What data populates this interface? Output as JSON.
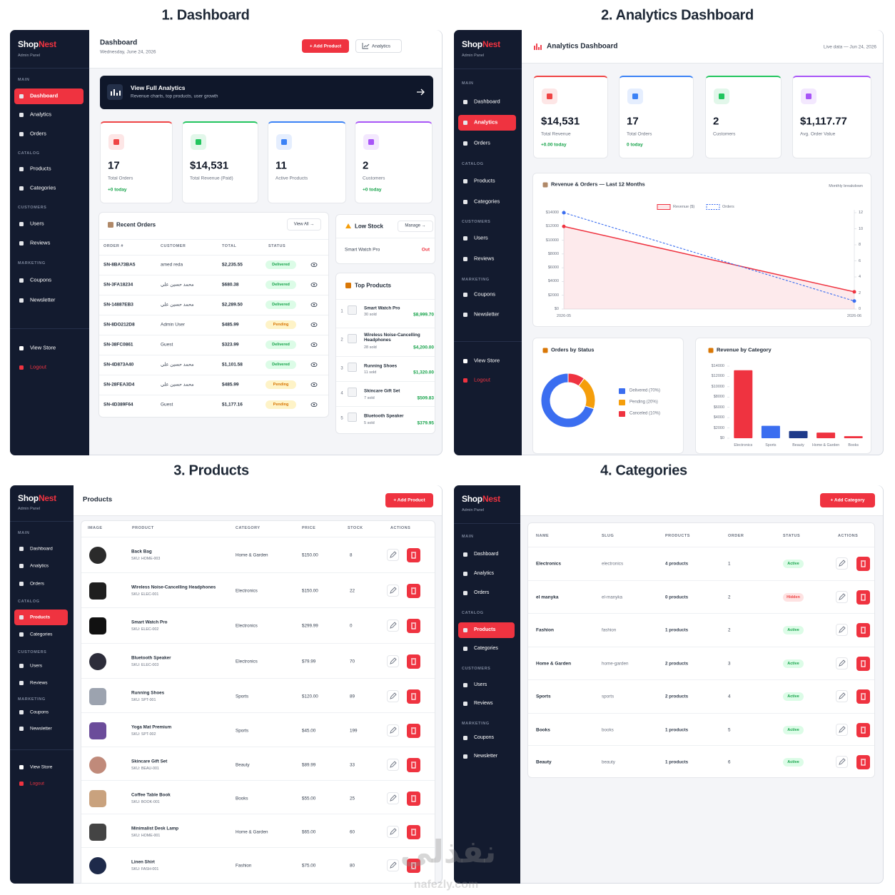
{
  "watermark": {
    "text": "نفذلي",
    "url": "nafezly.com"
  },
  "sidebar": {
    "brand_a": "Shop",
    "brand_b": "Nest",
    "subtitle": "Admin Panel",
    "sections": [
      {
        "label": "MAIN",
        "items": [
          "Dashboard",
          "Analytics",
          "Orders"
        ]
      },
      {
        "label": "CATALOG",
        "items": [
          "Products",
          "Categories"
        ]
      },
      {
        "label": "CUSTOMERS",
        "items": [
          "Users",
          "Reviews"
        ]
      },
      {
        "label": "MARKETING",
        "items": [
          "Coupons",
          "Newsletter"
        ]
      }
    ],
    "footer": [
      "View Store",
      "Logout"
    ]
  },
  "dashboard": {
    "caption": "1. Dashboard",
    "active_item": "Dashboard",
    "title": "Dashboard",
    "date": "Wednesday, June 24, 2026",
    "primary_button": "+ Add Product",
    "secondary_button": "Analytics",
    "banner": {
      "title": "View Full Analytics",
      "subtitle": "Revenue charts, top products, user growth"
    },
    "stats": [
      {
        "value": 17,
        "label": "Total Orders",
        "note": "+0 today",
        "accent": "#ef4444"
      },
      {
        "value": "$14,531",
        "label": "Total Revenue (Paid)",
        "accent": "#22c55e"
      },
      {
        "value": 11,
        "label": "Active Products",
        "accent": "#3b82f6"
      },
      {
        "value": 2,
        "label": "Customers",
        "note": "+0 today",
        "accent": "#a855f7"
      }
    ],
    "recent_orders": {
      "title": "Recent Orders",
      "link": "View All →",
      "columns": [
        "ORDER #",
        "CUSTOMER",
        "TOTAL",
        "STATUS"
      ],
      "rows": [
        {
          "order": "SN-8BA73BA5",
          "customer": "amed reda",
          "total": "$2,235.55",
          "status": "Delivered",
          "tone": "green"
        },
        {
          "order": "SN-3FA18234",
          "customer": "محمد حسين علي",
          "total": "$680.38",
          "status": "Delivered",
          "tone": "green"
        },
        {
          "order": "SN-14887EB3",
          "customer": "محمد حسين علي",
          "total": "$2,289.50",
          "status": "Delivered",
          "tone": "green"
        },
        {
          "order": "SN-8DO212D8",
          "customer": "Admin User",
          "total": "$485.99",
          "status": "Pending",
          "tone": "amber"
        },
        {
          "order": "SN-38FC0861",
          "customer": "Guest",
          "total": "$323.99",
          "status": "Delivered",
          "tone": "green"
        },
        {
          "order": "SN-4D873A40",
          "customer": "محمد حسين علي",
          "total": "$1,101.58",
          "status": "Delivered",
          "tone": "green"
        },
        {
          "order": "SN-28FEA3D4",
          "customer": "محمد حسين علي",
          "total": "$485.99",
          "status": "Pending",
          "tone": "amber"
        },
        {
          "order": "SN-4D389F64",
          "customer": "Guest",
          "total": "$1,177.16",
          "status": "Pending",
          "tone": "amber"
        }
      ]
    },
    "low_stock": {
      "title": "Low Stock",
      "link": "Manage →",
      "items": [
        {
          "name": "Smart Watch Pro",
          "stock": "Out"
        }
      ]
    },
    "top_products": {
      "title": "Top Products",
      "items": [
        {
          "rank": 1,
          "name": "Smart Watch Pro",
          "sold": "30 sold",
          "revenue": "$8,999.70"
        },
        {
          "rank": 2,
          "name": "Wireless Noise-Cancelling Headphones",
          "sold": "28 sold",
          "revenue": "$4,200.00"
        },
        {
          "rank": 3,
          "name": "Running Shoes",
          "sold": "11 sold",
          "revenue": "$1,320.00"
        },
        {
          "rank": 4,
          "name": "Skincare Gift Set",
          "sold": "7 sold",
          "revenue": "$509.83"
        },
        {
          "rank": 5,
          "name": "Bluetooth Speaker",
          "sold": "5 sold",
          "revenue": "$379.95"
        }
      ]
    }
  },
  "analytics": {
    "caption": "2. Analytics Dashboard",
    "active_item": "Analytics",
    "title": "Analytics Dashboard",
    "live": "Live data — Jun 24, 2026",
    "stats": [
      {
        "value": "$14,531",
        "label": "Total Revenue",
        "note": "+0.00 today",
        "accent": "#ef4444"
      },
      {
        "value": 17,
        "label": "Total Orders",
        "note": "0 today",
        "accent": "#3b82f6"
      },
      {
        "value": 2,
        "label": "Customers",
        "accent": "#22c55e"
      },
      {
        "value": "$1,117.77",
        "label": "Avg. Order Value",
        "accent": "#a855f7"
      }
    ]
  },
  "chart_data": [
    {
      "type": "line",
      "title": "Revenue & Orders — Last 12 Months",
      "subtitle": "Monthly breakdown",
      "x": [
        "2026-05",
        "2026-06"
      ],
      "series": [
        {
          "name": "Revenue ($)",
          "color": "#ef3340",
          "values": [
            12000,
            2500
          ],
          "area": true
        },
        {
          "name": "Orders",
          "color": "#3b6ef0",
          "values": [
            12,
            1
          ],
          "axis": "y2",
          "dash": true
        }
      ],
      "ylim": [
        0,
        14000
      ],
      "yticks": [
        {
          "value": 0,
          "label": "$0"
        },
        {
          "value": 2000,
          "label": "$2000"
        },
        {
          "value": 4000,
          "label": "$4000"
        },
        {
          "value": 6000,
          "label": "$6000"
        },
        {
          "value": 8000,
          "label": "$8000"
        },
        {
          "value": 10000,
          "label": "$10000"
        },
        {
          "value": 12000,
          "label": "$12000"
        },
        {
          "value": 14000,
          "label": "$14000"
        }
      ],
      "y2lim": [
        0,
        12
      ],
      "y2ticks": [
        0,
        2,
        4,
        6,
        8,
        10,
        12
      ]
    },
    {
      "type": "donut",
      "title": "Orders by Status",
      "categories": [
        "Delivered (70%)",
        "Pending (20%)",
        "Canceled (10%)"
      ],
      "values": [
        70,
        20,
        10
      ],
      "colors": [
        "#3b6ef0",
        "#f59e0b",
        "#ef3340"
      ]
    },
    {
      "type": "bar",
      "title": "Revenue by Category",
      "categories": [
        "Electronics",
        "Sports",
        "Beauty",
        "Home & Garden",
        "Books"
      ],
      "values": [
        13200,
        2400,
        1400,
        1100,
        400
      ],
      "colors": [
        "#ef3340",
        "#3b6ef0",
        "#1e3a8a",
        "#ef3340",
        "#ef3340"
      ],
      "ylim": [
        0,
        14000
      ],
      "yticks": [
        {
          "value": 0,
          "label": "$0"
        },
        {
          "value": 2000,
          "label": "$2000"
        },
        {
          "value": 4000,
          "label": "$4000"
        },
        {
          "value": 6000,
          "label": "$6000"
        },
        {
          "value": 8000,
          "label": "$8000"
        },
        {
          "value": 10000,
          "label": "$10000"
        },
        {
          "value": 12000,
          "label": "$12000"
        },
        {
          "value": 14000,
          "label": "$14000"
        }
      ]
    }
  ],
  "products": {
    "caption": "3. Products",
    "active_item": "Products",
    "title": "Products",
    "button": "+ Add Product",
    "columns": [
      "IMAGE",
      "PRODUCT",
      "CATEGORY",
      "PRICE",
      "STOCK",
      "ACTIONS"
    ],
    "rows": [
      {
        "name": "Back Bag",
        "sku": "SKU: HOME-003",
        "category": "Home & Garden",
        "price": "$150.00",
        "stock": 8
      },
      {
        "name": "Wireless Noise-Cancelling Headphones",
        "sku": "SKU: ELEC-001",
        "category": "Electronics",
        "price": "$150.00",
        "stock": 22
      },
      {
        "name": "Smart Watch Pro",
        "sku": "SKU: ELEC-002",
        "category": "Electronics",
        "price": "$299.99",
        "stock": 0
      },
      {
        "name": "Bluetooth Speaker",
        "sku": "SKU: ELEC-003",
        "category": "Electronics",
        "price": "$79.99",
        "stock": 70
      },
      {
        "name": "Running Shoes",
        "sku": "SKU: SPT-001",
        "category": "Sports",
        "price": "$120.00",
        "stock": 89
      },
      {
        "name": "Yoga Mat Premium",
        "sku": "SKU: SPT-002",
        "category": "Sports",
        "price": "$45.00",
        "stock": 199
      },
      {
        "name": "Skincare Gift Set",
        "sku": "SKU: BEAU-001",
        "category": "Beauty",
        "price": "$89.99",
        "stock": 33
      },
      {
        "name": "Coffee Table Book",
        "sku": "SKU: BOOK-001",
        "category": "Books",
        "price": "$55.00",
        "stock": 25
      },
      {
        "name": "Minimalist Desk Lamp",
        "sku": "SKU: HOME-001",
        "category": "Home & Garden",
        "price": "$65.00",
        "stock": 60
      },
      {
        "name": "Linen Shirt",
        "sku": "SKU: FASH-001",
        "category": "Fashion",
        "price": "$75.00",
        "stock": 80
      }
    ]
  },
  "categories": {
    "caption": "4. Categories",
    "active_item": "Products",
    "button": "+ Add Category",
    "columns": [
      "NAME",
      "SLUG",
      "PRODUCTS",
      "ORDER",
      "STATUS",
      "ACTIONS"
    ],
    "rows": [
      {
        "name": "Electronics",
        "slug": "electronics",
        "products": "4 products",
        "order": 1,
        "status": "Active",
        "tone": "green"
      },
      {
        "name": "el manyka",
        "slug": "el-manyka",
        "products": "0 products",
        "order": 2,
        "status": "Hidden",
        "tone": "red"
      },
      {
        "name": "Fashion",
        "slug": "fashion",
        "products": "1 products",
        "order": 2,
        "status": "Active",
        "tone": "green"
      },
      {
        "name": "Home & Garden",
        "slug": "home-garden",
        "products": "2 products",
        "order": 3,
        "status": "Active",
        "tone": "green"
      },
      {
        "name": "Sports",
        "slug": "sports",
        "products": "2 products",
        "order": 4,
        "status": "Active",
        "tone": "green"
      },
      {
        "name": "Books",
        "slug": "books",
        "products": "1 products",
        "order": 5,
        "status": "Active",
        "tone": "green"
      },
      {
        "name": "Beauty",
        "slug": "beauty",
        "products": "1 products",
        "order": 6,
        "status": "Active",
        "tone": "green"
      }
    ]
  }
}
